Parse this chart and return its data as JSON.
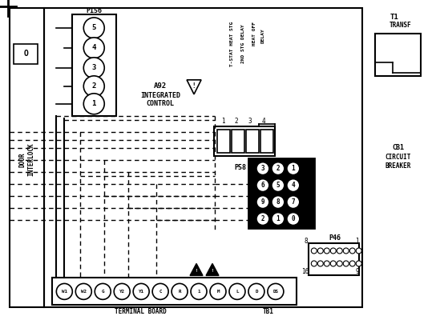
{
  "bg_color": "#ffffff",
  "line_color": "#000000",
  "p156_pins": [
    "5",
    "4",
    "3",
    "2",
    "1"
  ],
  "p58_pins": [
    [
      "3",
      "2",
      "1"
    ],
    [
      "6",
      "5",
      "4"
    ],
    [
      "9",
      "8",
      "7"
    ],
    [
      "2",
      "1",
      "0"
    ]
  ],
  "tb1_terminals": [
    "W1",
    "W2",
    "G",
    "Y2",
    "Y1",
    "C",
    "R",
    "1",
    "M",
    "L",
    "D",
    "DS"
  ],
  "interlock_label": "DOOR\nINTERLOCK",
  "t1_label": "T1\nTRANSF",
  "cb_label": "CB1\nCIRCUIT\nBREAKER"
}
